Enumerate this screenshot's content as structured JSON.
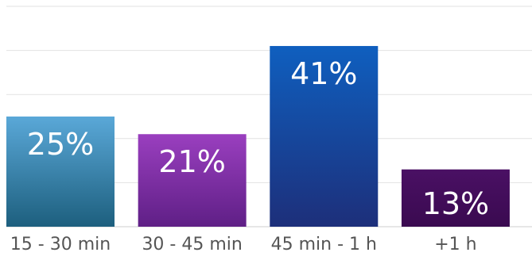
{
  "chart_data": {
    "type": "bar",
    "categories": [
      "15 - 30 min",
      "30 - 45 min",
      "45 min - 1 h",
      "+1 h"
    ],
    "values": [
      25,
      21,
      41,
      13
    ],
    "value_labels": [
      "25%",
      "21%",
      "41%",
      "13%"
    ],
    "title": "",
    "xlabel": "",
    "ylabel": "",
    "ylim": [
      0,
      50
    ],
    "grid": true,
    "legend": "none",
    "colors": [
      {
        "top": "#5aa8d8",
        "bottom": "#1d5f7e"
      },
      {
        "top": "#9a3fbf",
        "bottom": "#5f1f86"
      },
      {
        "top": "#0f5fbf",
        "bottom": "#1d2f7a"
      },
      {
        "top": "#4a1064",
        "bottom": "#3a0a50"
      }
    ]
  }
}
